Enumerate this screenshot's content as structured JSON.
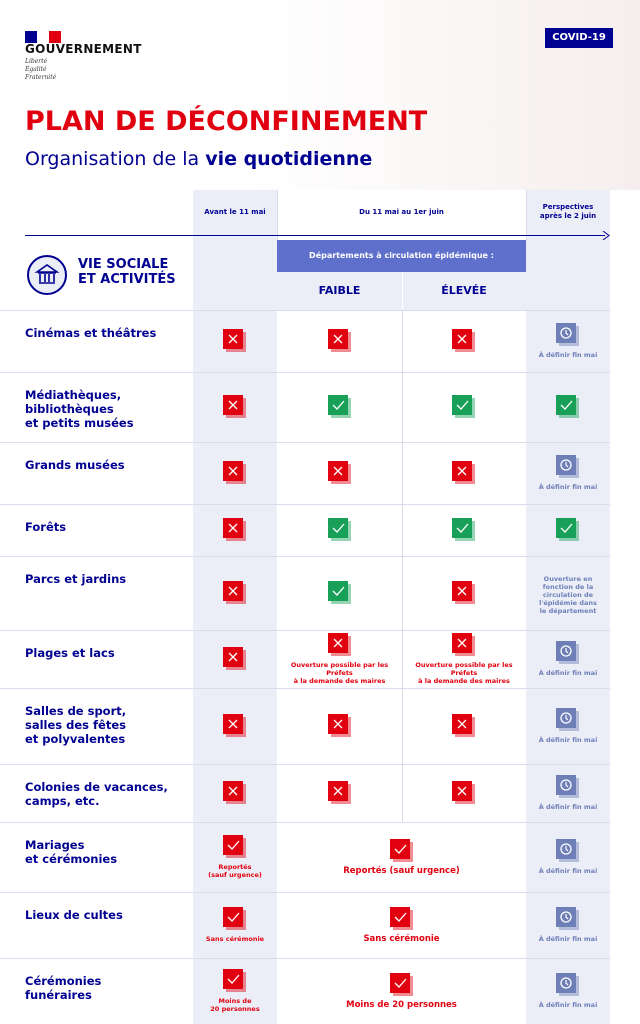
{
  "header": {
    "logo": "GOUVERNEMENT",
    "motto": [
      "Liberté",
      "Égalité",
      "Fraternité"
    ],
    "badge": "COVID-19",
    "title": "PLAN DE DÉCONFINEMENT",
    "subtitle": "Organisation de la ",
    "subtitle_bold": "vie quotidienne"
  },
  "table": {
    "periods": [
      "Avant le 11 mai",
      "Du 11 mai au 1er juin",
      "Perspectives\naprès le 2 juin"
    ],
    "section": "VIE SOCIALE\nET ACTIVITÉS",
    "band": "Départements à circulation épidémique :",
    "levels": [
      "FAIBLE",
      "ÉLEVÉE"
    ],
    "rows": [
      {
        "label": "Cinémas et théâtres",
        "cells": [
          {
            "icon": "x"
          },
          {
            "icon": "x"
          },
          {
            "icon": "x"
          },
          {
            "icon": "clock",
            "note": "À définir fin mai"
          }
        ]
      },
      {
        "label": "Médiathèques,\nbibliothèques\net petits musées",
        "cells": [
          {
            "icon": "x"
          },
          {
            "icon": "check"
          },
          {
            "icon": "check"
          },
          {
            "icon": "check"
          }
        ]
      },
      {
        "label": "Grands musées",
        "cells": [
          {
            "icon": "x"
          },
          {
            "icon": "x"
          },
          {
            "icon": "x"
          },
          {
            "icon": "clock",
            "note": "À définir fin mai"
          }
        ]
      },
      {
        "label": "Forêts",
        "cells": [
          {
            "icon": "x"
          },
          {
            "icon": "check"
          },
          {
            "icon": "check"
          },
          {
            "icon": "check"
          }
        ]
      },
      {
        "label": "Parcs et jardins",
        "cells": [
          {
            "icon": "x"
          },
          {
            "icon": "check"
          },
          {
            "icon": "x"
          },
          {
            "note": "Ouverture en\nfonction de la\ncirculation de\nl'épidémie dans\nle département"
          }
        ]
      },
      {
        "label": "Plages et lacs",
        "cells": [
          {
            "icon": "x"
          },
          {
            "icon": "x",
            "note": "Ouverture possible par les Préfets\nà la demande des maires"
          },
          {
            "icon": "x",
            "note": "Ouverture possible par les Préfets\nà la demande des maires"
          },
          {
            "icon": "clock",
            "note": "À définir fin mai"
          }
        ]
      },
      {
        "label": "Salles de sport,\nsalles des fêtes\net polyvalentes",
        "cells": [
          {
            "icon": "x"
          },
          {
            "icon": "x"
          },
          {
            "icon": "x"
          },
          {
            "icon": "clock",
            "note": "À définir fin mai"
          }
        ]
      },
      {
        "label": "Colonies de vacances,\ncamps, etc.",
        "cells": [
          {
            "icon": "x"
          },
          {
            "icon": "x"
          },
          {
            "icon": "x"
          },
          {
            "icon": "clock",
            "note": "À définir fin mai"
          }
        ]
      },
      {
        "label": "Mariages\net cérémonies",
        "cells": [
          {
            "icon": "redcheck",
            "note": "Reportés\n(sauf urgence)"
          },
          {
            "icon": "redcheck",
            "note": "Reportés (sauf urgence)",
            "span": 2
          },
          {
            "icon": "clock",
            "note": "À définir fin mai"
          }
        ]
      },
      {
        "label": "Lieux de cultes",
        "cells": [
          {
            "icon": "redcheck",
            "note": "Sans cérémonie"
          },
          {
            "icon": "redcheck",
            "note": "Sans cérémonie",
            "span": 2
          },
          {
            "icon": "clock",
            "note": "À définir fin mai"
          }
        ]
      },
      {
        "label": "Cérémonies\nfunéraires",
        "cells": [
          {
            "icon": "redcheck",
            "note": "Moins de\n20 personnes"
          },
          {
            "icon": "redcheck",
            "note": "Moins de 20 personnes",
            "span": 2
          },
          {
            "icon": "clock",
            "note": "À définir fin mai"
          }
        ]
      }
    ]
  }
}
